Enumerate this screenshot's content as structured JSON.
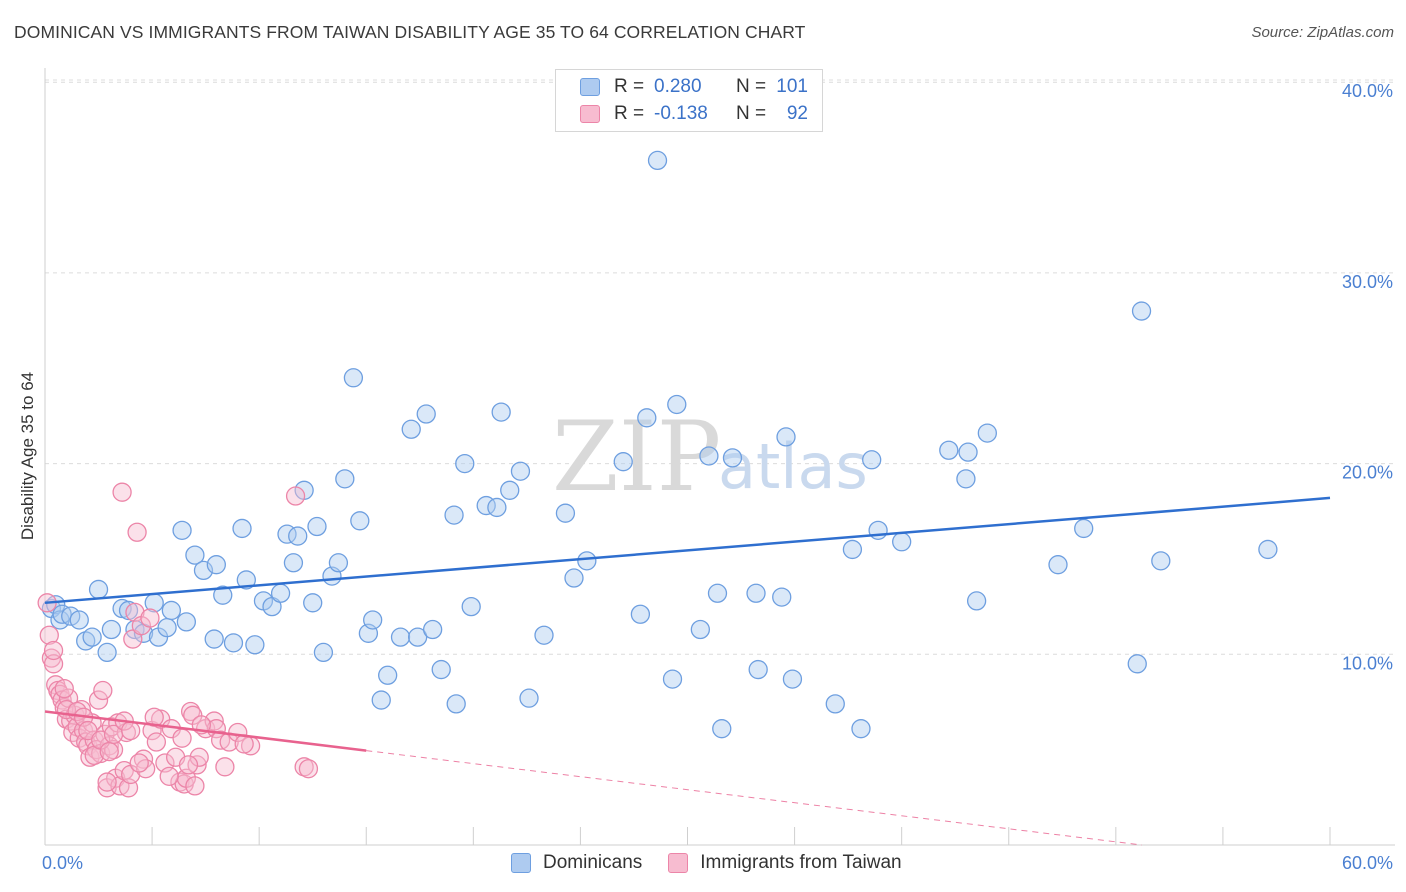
{
  "title": "DOMINICAN VS IMMIGRANTS FROM TAIWAN DISABILITY AGE 35 TO 64 CORRELATION CHART",
  "source": "Source: ZipAtlas.com",
  "watermark": {
    "zip": "ZIP",
    "atlas": "atlas"
  },
  "legend": {
    "rows": [
      {
        "r_label": "R =",
        "r_value": "0.280",
        "n_label": "N =",
        "n_value": "101"
      },
      {
        "r_label": "R =",
        "r_value": "-0.138",
        "n_label": "N =",
        "n_value": "92"
      }
    ]
  },
  "bottom_legend": [
    "Dominicans",
    "Immigrants from Taiwan"
  ],
  "colors": {
    "blue_fill": "#aecbf0",
    "blue_stroke": "#6e9fe0",
    "blue_line": "#2f6fcf",
    "pink_fill": "#f7bcd0",
    "pink_stroke": "#ec85a8",
    "pink_line": "#e8628e",
    "tick_text": "#4a7fd1",
    "grid": "#dcdcdc"
  },
  "chart_data": {
    "type": "scatter",
    "title": "DOMINICAN VS IMMIGRANTS FROM TAIWAN DISABILITY AGE 35 TO 64 CORRELATION CHART",
    "xlabel": "",
    "ylabel": "Disability Age 35 to 64",
    "xlim": [
      0,
      60
    ],
    "ylim": [
      0,
      42
    ],
    "x_tick_labels": [
      {
        "value": 0,
        "label": "0.0%"
      },
      {
        "value": 60,
        "label": "60.0%"
      }
    ],
    "y_tick_labels": [
      {
        "value": 10,
        "label": "10.0%"
      },
      {
        "value": 20,
        "label": "20.0%"
      },
      {
        "value": 30,
        "label": "30.0%"
      },
      {
        "value": 40,
        "label": "40.0%"
      }
    ],
    "series": [
      {
        "name": "Dominicans",
        "r": 0.28,
        "n": 101,
        "trend": {
          "x0": 0,
          "y0": 12.7,
          "x1": 60,
          "y1": 18.2,
          "dashed_from": null
        },
        "points": [
          [
            0.3,
            12.4
          ],
          [
            0.5,
            12.6
          ],
          [
            0.7,
            11.8
          ],
          [
            0.8,
            12.1
          ],
          [
            1.2,
            12.0
          ],
          [
            1.6,
            11.8
          ],
          [
            1.9,
            10.7
          ],
          [
            2.2,
            10.9
          ],
          [
            2.5,
            13.4
          ],
          [
            2.9,
            10.1
          ],
          [
            3.1,
            11.3
          ],
          [
            3.6,
            12.4
          ],
          [
            3.9,
            12.3
          ],
          [
            4.2,
            11.3
          ],
          [
            4.6,
            11.1
          ],
          [
            5.1,
            12.7
          ],
          [
            5.3,
            10.9
          ],
          [
            5.7,
            11.4
          ],
          [
            5.9,
            12.3
          ],
          [
            6.4,
            16.5
          ],
          [
            6.6,
            11.7
          ],
          [
            7.0,
            15.2
          ],
          [
            7.4,
            14.4
          ],
          [
            7.9,
            10.8
          ],
          [
            8.0,
            14.7
          ],
          [
            8.3,
            13.1
          ],
          [
            8.8,
            10.6
          ],
          [
            9.2,
            16.6
          ],
          [
            9.4,
            13.9
          ],
          [
            9.8,
            10.5
          ],
          [
            10.2,
            12.8
          ],
          [
            10.6,
            12.5
          ],
          [
            11.0,
            13.2
          ],
          [
            11.3,
            16.3
          ],
          [
            11.6,
            14.8
          ],
          [
            11.8,
            16.2
          ],
          [
            12.1,
            18.6
          ],
          [
            12.5,
            12.7
          ],
          [
            12.7,
            16.7
          ],
          [
            13.0,
            10.1
          ],
          [
            13.4,
            14.1
          ],
          [
            13.7,
            14.8
          ],
          [
            14.0,
            19.2
          ],
          [
            14.4,
            24.5
          ],
          [
            14.7,
            17.0
          ],
          [
            15.1,
            11.1
          ],
          [
            15.3,
            11.8
          ],
          [
            15.7,
            7.6
          ],
          [
            16.0,
            8.9
          ],
          [
            16.6,
            10.9
          ],
          [
            17.1,
            21.8
          ],
          [
            17.4,
            10.9
          ],
          [
            17.8,
            22.6
          ],
          [
            18.1,
            11.3
          ],
          [
            18.5,
            9.2
          ],
          [
            19.1,
            17.3
          ],
          [
            19.2,
            7.4
          ],
          [
            19.6,
            20.0
          ],
          [
            19.9,
            12.5
          ],
          [
            20.6,
            17.8
          ],
          [
            21.1,
            17.7
          ],
          [
            21.3,
            22.7
          ],
          [
            21.7,
            18.6
          ],
          [
            22.2,
            19.6
          ],
          [
            22.6,
            7.7
          ],
          [
            23.3,
            11.0
          ],
          [
            24.3,
            17.4
          ],
          [
            24.7,
            14.0
          ],
          [
            25.3,
            14.9
          ],
          [
            27.0,
            20.1
          ],
          [
            27.8,
            12.1
          ],
          [
            28.1,
            22.4
          ],
          [
            28.6,
            35.9
          ],
          [
            29.3,
            8.7
          ],
          [
            29.5,
            23.1
          ],
          [
            30.6,
            11.3
          ],
          [
            31.0,
            20.4
          ],
          [
            31.4,
            13.2
          ],
          [
            31.6,
            6.1
          ],
          [
            32.1,
            20.3
          ],
          [
            33.2,
            13.2
          ],
          [
            33.3,
            9.2
          ],
          [
            34.4,
            13.0
          ],
          [
            34.6,
            21.4
          ],
          [
            34.9,
            8.7
          ],
          [
            36.9,
            7.4
          ],
          [
            37.7,
            15.5
          ],
          [
            38.1,
            6.1
          ],
          [
            38.6,
            20.2
          ],
          [
            38.9,
            16.5
          ],
          [
            40.0,
            15.9
          ],
          [
            42.2,
            20.7
          ],
          [
            43.0,
            19.2
          ],
          [
            43.1,
            20.6
          ],
          [
            43.5,
            12.8
          ],
          [
            44.0,
            21.6
          ],
          [
            47.3,
            14.7
          ],
          [
            48.5,
            16.6
          ],
          [
            51.0,
            9.5
          ],
          [
            51.2,
            28.0
          ],
          [
            52.1,
            14.9
          ],
          [
            57.1,
            15.5
          ]
        ]
      },
      {
        "name": "Immigrants from Taiwan",
        "r": -0.138,
        "n": 92,
        "trend": {
          "x0": 0,
          "y0": 7.0,
          "x1": 60,
          "y1": -1.2,
          "solid_until_x": 15
        },
        "points": [
          [
            0.1,
            12.7
          ],
          [
            0.2,
            11.0
          ],
          [
            0.3,
            9.8
          ],
          [
            0.4,
            9.5
          ],
          [
            0.5,
            8.4
          ],
          [
            0.6,
            8.1
          ],
          [
            0.7,
            7.9
          ],
          [
            0.8,
            7.6
          ],
          [
            0.9,
            7.2
          ],
          [
            1.0,
            6.6
          ],
          [
            1.1,
            7.7
          ],
          [
            1.2,
            6.5
          ],
          [
            1.3,
            5.9
          ],
          [
            1.4,
            6.8
          ],
          [
            1.5,
            6.2
          ],
          [
            1.6,
            5.6
          ],
          [
            1.7,
            7.1
          ],
          [
            1.8,
            6.0
          ],
          [
            1.9,
            5.4
          ],
          [
            2.0,
            5.2
          ],
          [
            2.1,
            4.6
          ],
          [
            2.2,
            6.4
          ],
          [
            2.3,
            5.5
          ],
          [
            2.4,
            5.0
          ],
          [
            2.5,
            7.6
          ],
          [
            2.6,
            4.8
          ],
          [
            2.7,
            8.1
          ],
          [
            2.8,
            5.8
          ],
          [
            2.9,
            3.0
          ],
          [
            3.0,
            5.2
          ],
          [
            3.1,
            6.2
          ],
          [
            3.2,
            5.0
          ],
          [
            3.3,
            3.5
          ],
          [
            3.4,
            6.4
          ],
          [
            3.5,
            3.1
          ],
          [
            3.6,
            18.5
          ],
          [
            3.7,
            3.9
          ],
          [
            3.8,
            5.9
          ],
          [
            3.9,
            3.0
          ],
          [
            4.0,
            3.7
          ],
          [
            4.1,
            10.8
          ],
          [
            4.2,
            12.2
          ],
          [
            4.3,
            16.4
          ],
          [
            4.5,
            11.5
          ],
          [
            4.6,
            4.5
          ],
          [
            4.7,
            4.0
          ],
          [
            4.9,
            11.9
          ],
          [
            5.0,
            6.0
          ],
          [
            5.2,
            5.4
          ],
          [
            5.4,
            6.6
          ],
          [
            5.6,
            4.3
          ],
          [
            5.9,
            6.1
          ],
          [
            6.1,
            4.6
          ],
          [
            6.3,
            3.3
          ],
          [
            6.4,
            5.6
          ],
          [
            6.5,
            3.2
          ],
          [
            6.6,
            3.5
          ],
          [
            6.8,
            7.0
          ],
          [
            6.9,
            6.8
          ],
          [
            7.0,
            3.1
          ],
          [
            7.1,
            4.2
          ],
          [
            7.2,
            4.6
          ],
          [
            7.5,
            6.1
          ],
          [
            7.9,
            6.5
          ],
          [
            8.0,
            6.1
          ],
          [
            8.2,
            5.5
          ],
          [
            8.6,
            5.4
          ],
          [
            9.0,
            5.9
          ],
          [
            9.6,
            5.2
          ],
          [
            11.7,
            18.3
          ],
          [
            12.1,
            4.1
          ],
          [
            12.3,
            4.0
          ],
          [
            0.4,
            10.2
          ],
          [
            0.9,
            8.2
          ],
          [
            1.0,
            7.1
          ],
          [
            1.5,
            7.0
          ],
          [
            1.8,
            6.7
          ],
          [
            2.0,
            6.0
          ],
          [
            2.3,
            4.7
          ],
          [
            2.6,
            5.5
          ],
          [
            3.0,
            4.9
          ],
          [
            3.2,
            5.8
          ],
          [
            3.7,
            6.5
          ],
          [
            4.0,
            6.0
          ],
          [
            4.4,
            4.3
          ],
          [
            5.1,
            6.7
          ],
          [
            5.8,
            3.6
          ],
          [
            6.7,
            4.2
          ],
          [
            7.3,
            6.3
          ],
          [
            8.4,
            4.1
          ],
          [
            9.3,
            5.3
          ],
          [
            2.9,
            3.3
          ]
        ]
      }
    ]
  }
}
